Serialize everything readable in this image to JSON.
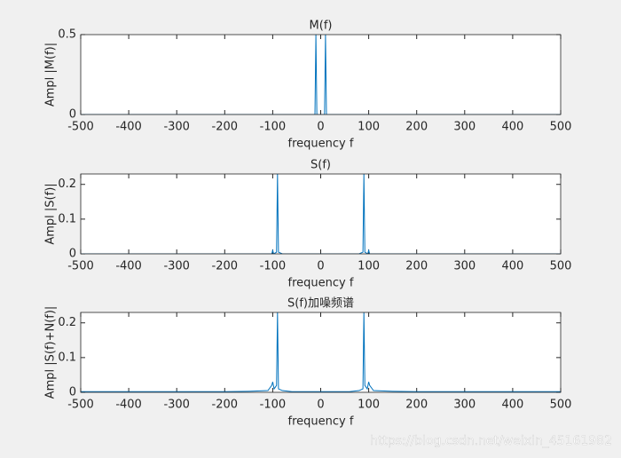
{
  "chart_data": [
    {
      "type": "line",
      "title": "M(f)",
      "x_label": "frequency f",
      "y_label": "Ampl |M(f)|",
      "color": "#0072bd",
      "x": [
        -500,
        -12,
        -10,
        -8,
        8,
        10,
        12,
        500
      ],
      "values": [
        0,
        0,
        0.5,
        0,
        0,
        0.5,
        0,
        0
      ],
      "xlim": [
        -500,
        500
      ],
      "xticks": [
        -500,
        -400,
        -300,
        -200,
        -100,
        0,
        100,
        200,
        300,
        400,
        500
      ],
      "ylim": [
        0,
        0.5
      ],
      "yticks": [
        0,
        0.5
      ]
    },
    {
      "type": "line",
      "title": "S(f)",
      "x_label": "frequency f",
      "y_label": "Ampl |S(f)|",
      "color": "#0072bd",
      "x": [
        -500,
        -102,
        -100,
        -98,
        -92,
        -90,
        -88,
        -80,
        80,
        88,
        90,
        92,
        98,
        100,
        102,
        500
      ],
      "values": [
        0,
        0,
        0.01,
        0,
        0.005,
        0.23,
        0.005,
        0,
        0,
        0.005,
        0.23,
        0.005,
        0,
        0.01,
        0,
        0
      ],
      "xlim": [
        -500,
        500
      ],
      "xticks": [
        -500,
        -400,
        -300,
        -200,
        -100,
        0,
        100,
        200,
        300,
        400,
        500
      ],
      "ylim": [
        0,
        0.23
      ],
      "yticks": [
        0,
        0.1,
        0.2
      ]
    },
    {
      "type": "line",
      "title": "S(f)加噪频谱",
      "x_label": "frequency f",
      "y_label": "Ampl |S(f)+N(f)|",
      "color": "#0072bd",
      "x": [
        -500,
        -200,
        -150,
        -110,
        -102,
        -100,
        -97,
        -92,
        -90,
        -88,
        -80,
        -60,
        60,
        80,
        88,
        90,
        92,
        97,
        100,
        102,
        110,
        150,
        200,
        500
      ],
      "values": [
        0.002,
        0.002,
        0.003,
        0.005,
        0.02,
        0.03,
        0.01,
        0.02,
        0.23,
        0.01,
        0.005,
        0.002,
        0.002,
        0.005,
        0.01,
        0.23,
        0.02,
        0.01,
        0.03,
        0.02,
        0.005,
        0.003,
        0.002,
        0.002
      ],
      "xlim": [
        -500,
        500
      ],
      "xticks": [
        -500,
        -400,
        -300,
        -200,
        -100,
        0,
        100,
        200,
        300,
        400,
        500
      ],
      "ylim": [
        0,
        0.23
      ],
      "yticks": [
        0,
        0.1,
        0.2
      ]
    }
  ],
  "watermark": "https://blog.csdn.net/weixin_45161982"
}
